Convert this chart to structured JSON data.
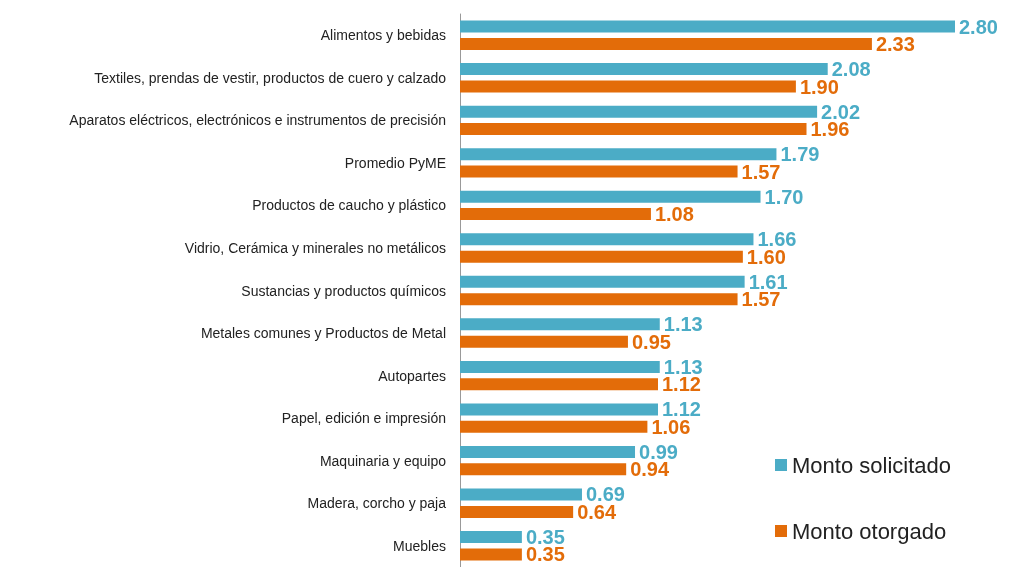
{
  "chart_data": {
    "type": "bar",
    "orientation": "horizontal",
    "categories": [
      "Alimentos y bebidas",
      "Textiles, prendas de vestir, productos de cuero y calzado",
      "Aparatos eléctricos, electrónicos e instrumentos de precisión",
      "Promedio PyME",
      "Productos de caucho y plástico",
      "Vidrio, Cerámica y minerales no metálicos",
      "Sustancias y productos químicos",
      "Metales comunes y Productos de Metal",
      "Autopartes",
      "Papel, edición e impresión",
      "Maquinaria y equipo",
      "Madera, corcho y paja",
      "Muebles"
    ],
    "series": [
      {
        "name": "Monto solicitado",
        "color": "#4bacc6",
        "values": [
          2.8,
          2.08,
          2.02,
          1.79,
          1.7,
          1.66,
          1.61,
          1.13,
          1.13,
          1.12,
          0.99,
          0.69,
          0.35
        ],
        "value_labels": [
          "2.80",
          "2.08",
          "2.02",
          "1.79",
          "1.70",
          "1.66",
          "1.61",
          "1.13",
          "1.13",
          "1.12",
          "0.99",
          "0.69",
          "0.35"
        ]
      },
      {
        "name": "Monto otorgado",
        "color": "#e36c09",
        "values": [
          2.33,
          1.9,
          1.96,
          1.57,
          1.08,
          1.6,
          1.57,
          0.95,
          1.12,
          1.06,
          0.94,
          0.64,
          0.35
        ],
        "value_labels": [
          "2.33",
          "1.90",
          "1.96",
          "1.57",
          "1.08",
          "1.60",
          "1.57",
          "0.95",
          "1.12",
          "1.06",
          "0.94",
          "0.64",
          "0.35"
        ]
      }
    ],
    "legend": "bottom right",
    "grid": false
  }
}
